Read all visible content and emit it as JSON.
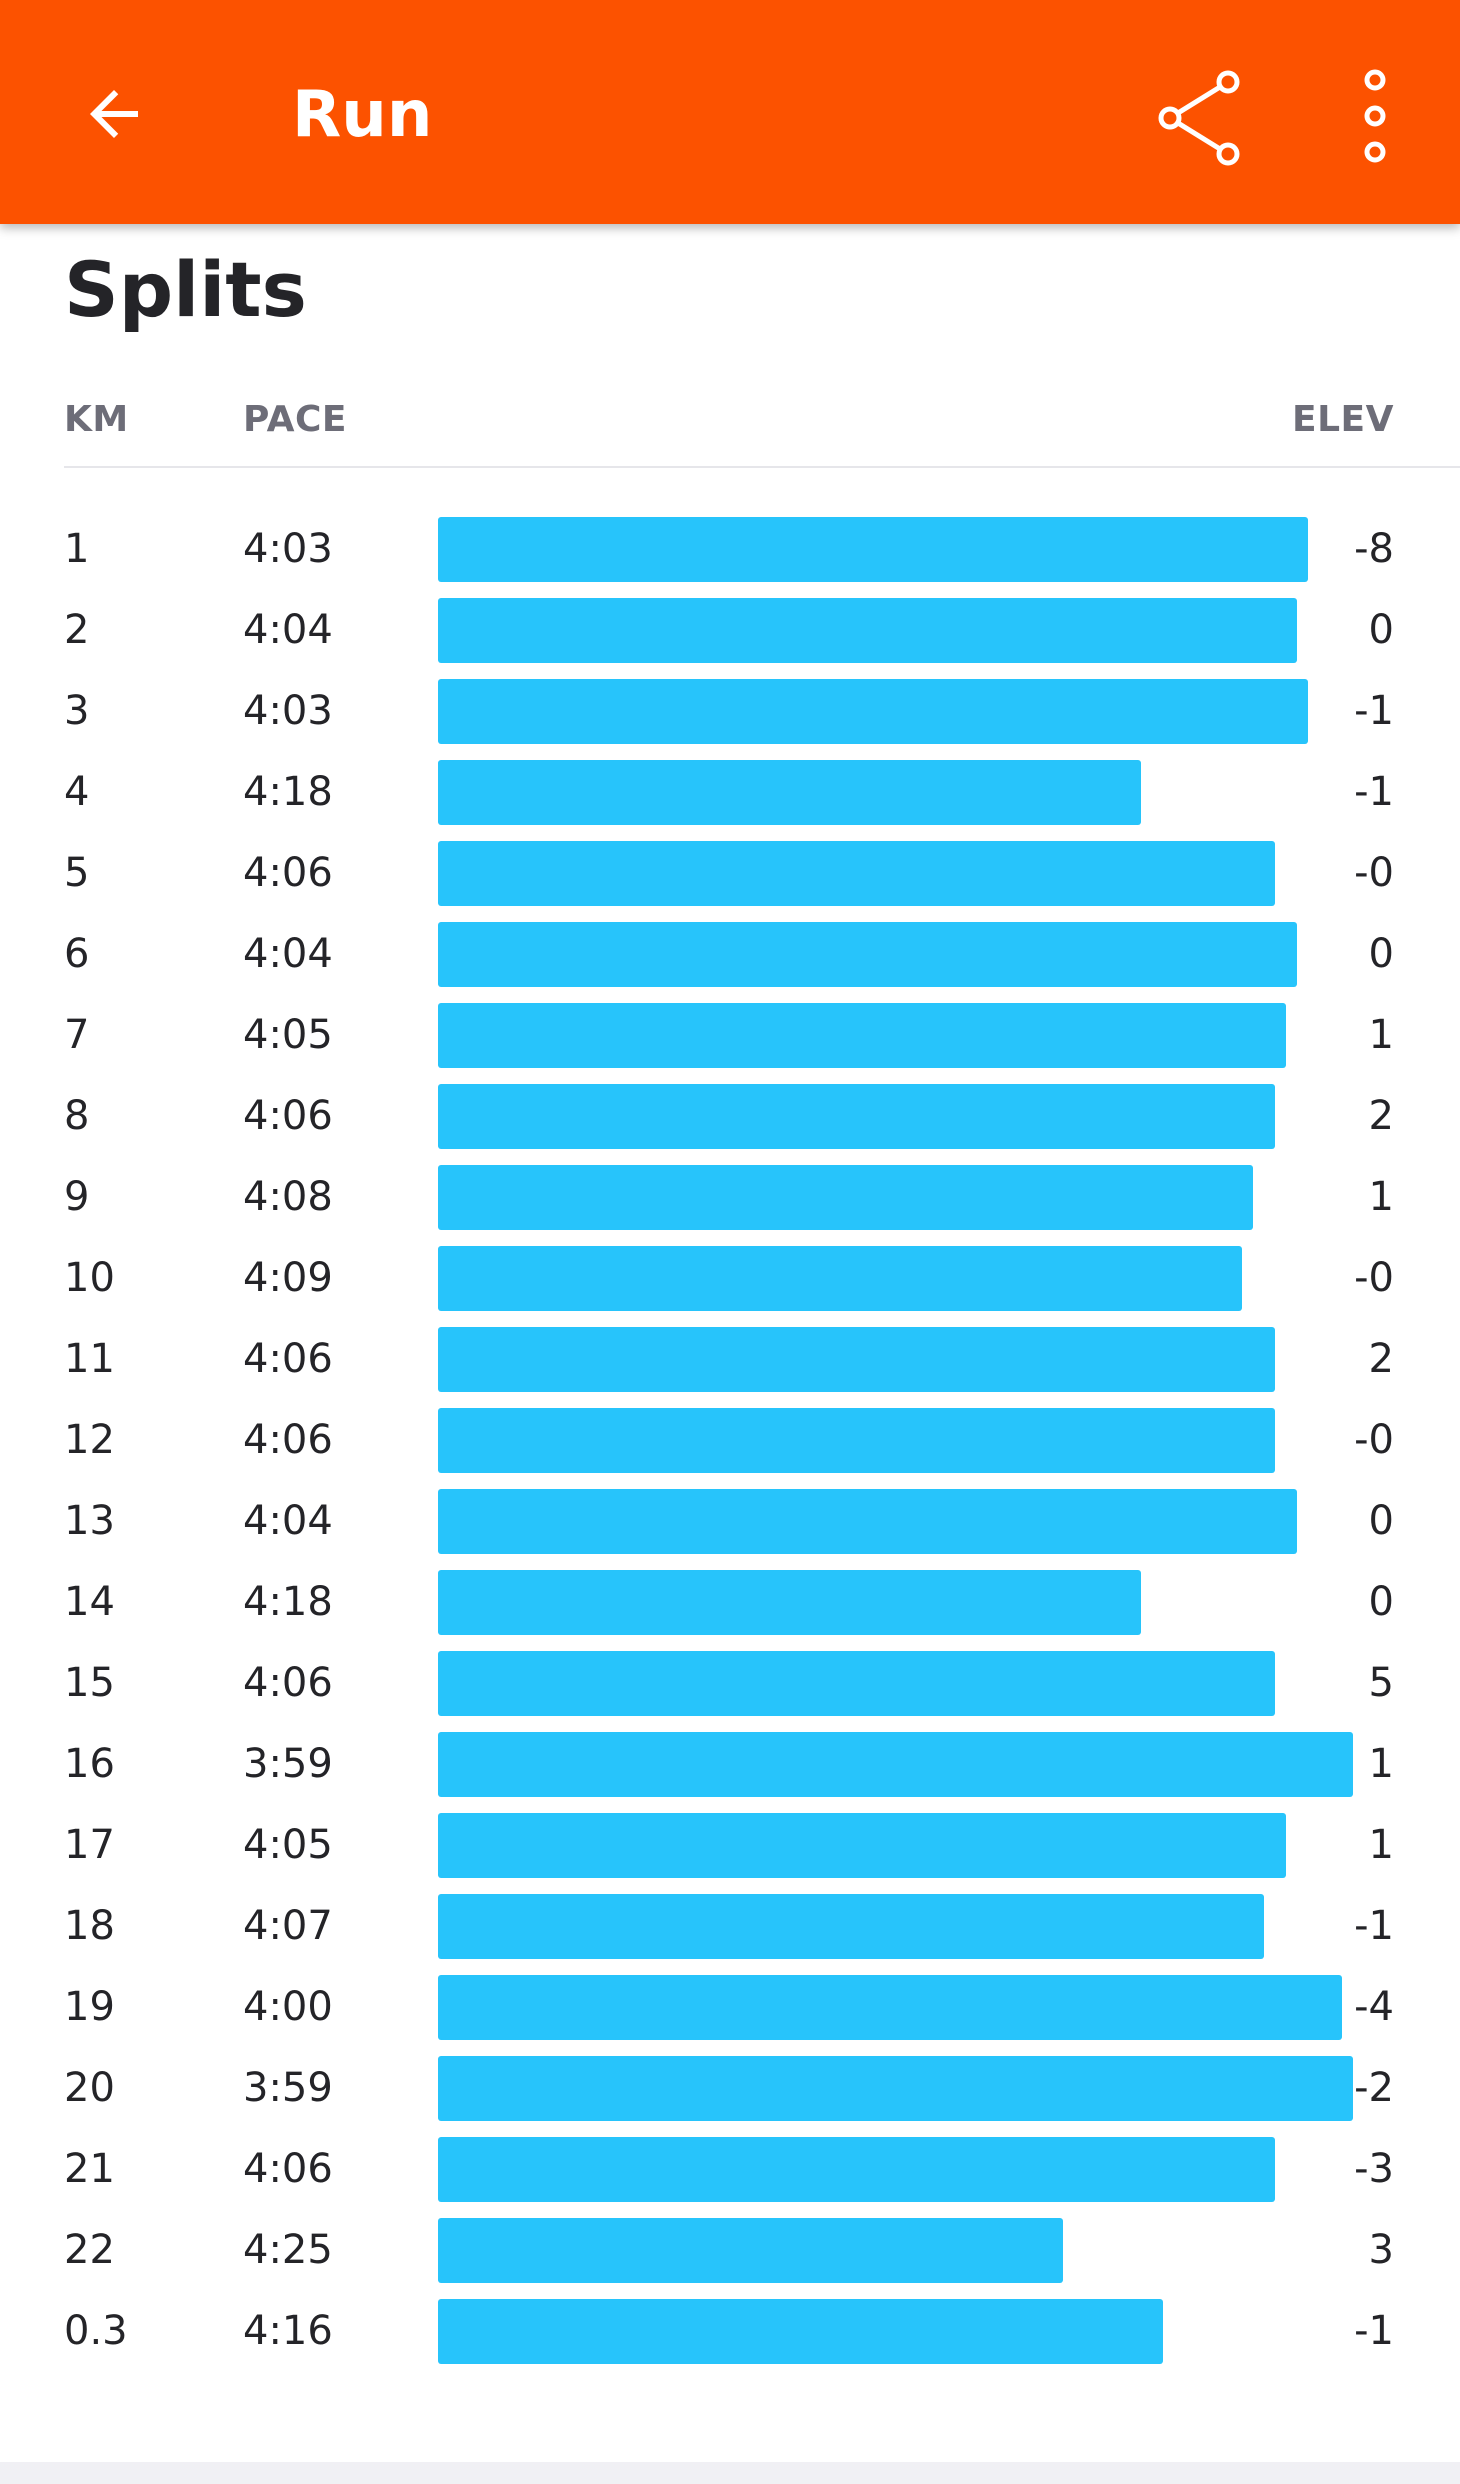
{
  "app_bar": {
    "title": "Run",
    "back_icon": "arrow-left-icon",
    "share_icon": "share-icon",
    "more_icon": "more-vertical-icon",
    "color": "#fc5200"
  },
  "splits": {
    "title": "Splits",
    "headers": {
      "km": "KM",
      "pace": "PACE",
      "elev": "ELEV"
    },
    "bar_color": "#27c4fb",
    "rows": [
      {
        "km": "1",
        "pace": "4:03",
        "elev": "-8"
      },
      {
        "km": "2",
        "pace": "4:04",
        "elev": "0"
      },
      {
        "km": "3",
        "pace": "4:03",
        "elev": "-1"
      },
      {
        "km": "4",
        "pace": "4:18",
        "elev": "-1"
      },
      {
        "km": "5",
        "pace": "4:06",
        "elev": "-0"
      },
      {
        "km": "6",
        "pace": "4:04",
        "elev": "0"
      },
      {
        "km": "7",
        "pace": "4:05",
        "elev": "1"
      },
      {
        "km": "8",
        "pace": "4:06",
        "elev": "2"
      },
      {
        "km": "9",
        "pace": "4:08",
        "elev": "1"
      },
      {
        "km": "10",
        "pace": "4:09",
        "elev": "-0"
      },
      {
        "km": "11",
        "pace": "4:06",
        "elev": "2"
      },
      {
        "km": "12",
        "pace": "4:06",
        "elev": "-0"
      },
      {
        "km": "13",
        "pace": "4:04",
        "elev": "0"
      },
      {
        "km": "14",
        "pace": "4:18",
        "elev": "0"
      },
      {
        "km": "15",
        "pace": "4:06",
        "elev": "5"
      },
      {
        "km": "16",
        "pace": "3:59",
        "elev": "1"
      },
      {
        "km": "17",
        "pace": "4:05",
        "elev": "1"
      },
      {
        "km": "18",
        "pace": "4:07",
        "elev": "-1"
      },
      {
        "km": "19",
        "pace": "4:00",
        "elev": "-4"
      },
      {
        "km": "20",
        "pace": "3:59",
        "elev": "-2"
      },
      {
        "km": "21",
        "pace": "4:06",
        "elev": "-3"
      },
      {
        "km": "22",
        "pace": "4:25",
        "elev": "3"
      },
      {
        "km": "0.3",
        "pace": "4:16",
        "elev": "-1"
      }
    ]
  }
}
